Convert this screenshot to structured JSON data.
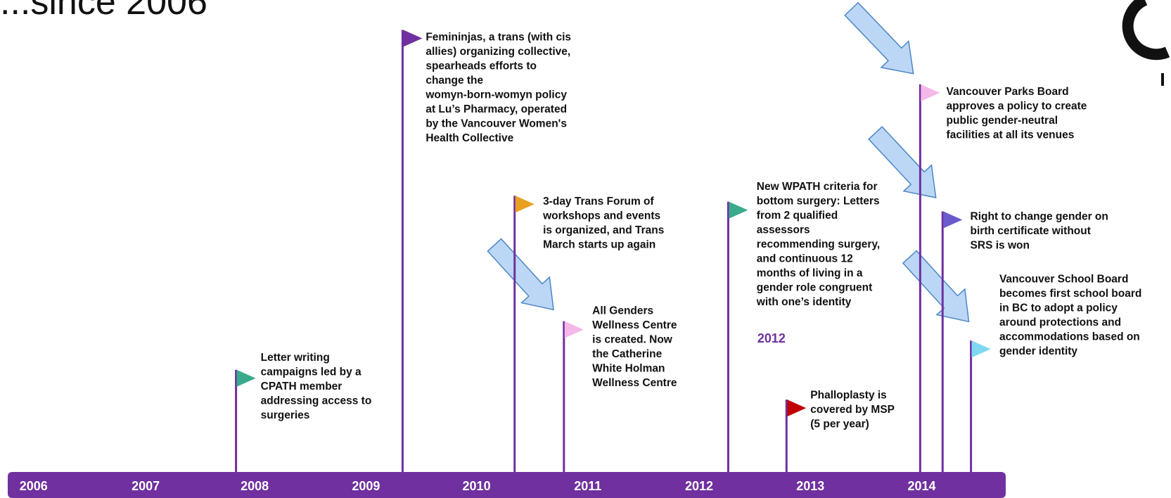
{
  "title": "...since 2006",
  "years": [
    "2006",
    "2007",
    "2008",
    "2009",
    "2010",
    "2011",
    "2012",
    "2013",
    "2014"
  ],
  "highlight_label": "2012",
  "events": [
    {
      "lines": [
        "Letter writing",
        "campaigns led by a",
        "CPATH member",
        "addressing access to",
        "surgeries"
      ]
    },
    {
      "lines": [
        "Femininjas, a trans (with cis",
        "allies) organizing collective,",
        "spearheads efforts to",
        "change the",
        "womyn-born-womyn policy",
        "at Lu’s Pharmacy, operated",
        "by the Vancouver Women's",
        "Health Collective"
      ]
    },
    {
      "lines": [
        "3-day Trans Forum of",
        "workshops and events",
        "is organized, and Trans",
        "March starts up again"
      ]
    },
    {
      "lines": [
        "All Genders",
        "Wellness Centre",
        "is created. Now",
        "the Catherine",
        "White Holman",
        "Wellness Centre"
      ]
    },
    {
      "lines": [
        "New WPATH criteria for",
        "bottom surgery: Letters",
        "from 2 qualified",
        "assessors",
        "recommending surgery,",
        "and continuous 12",
        "months of living in a",
        "gender role congruent",
        "with one’s identity"
      ]
    },
    {
      "lines": [
        "Phalloplasty is",
        "covered by MSP",
        "(5 per year)"
      ]
    },
    {
      "lines": [
        "Vancouver Parks Board",
        "approves a policy to create",
        "public gender-neutral",
        "facilities at all its venues"
      ]
    },
    {
      "lines": [
        "Right to change gender on",
        "birth certificate without",
        "SRS is won"
      ]
    },
    {
      "lines": [
        "Vancouver School Board",
        "becomes first school board",
        "in BC to adopt a policy",
        "around protections and",
        "accommodations based on",
        "gender identity"
      ]
    }
  ]
}
